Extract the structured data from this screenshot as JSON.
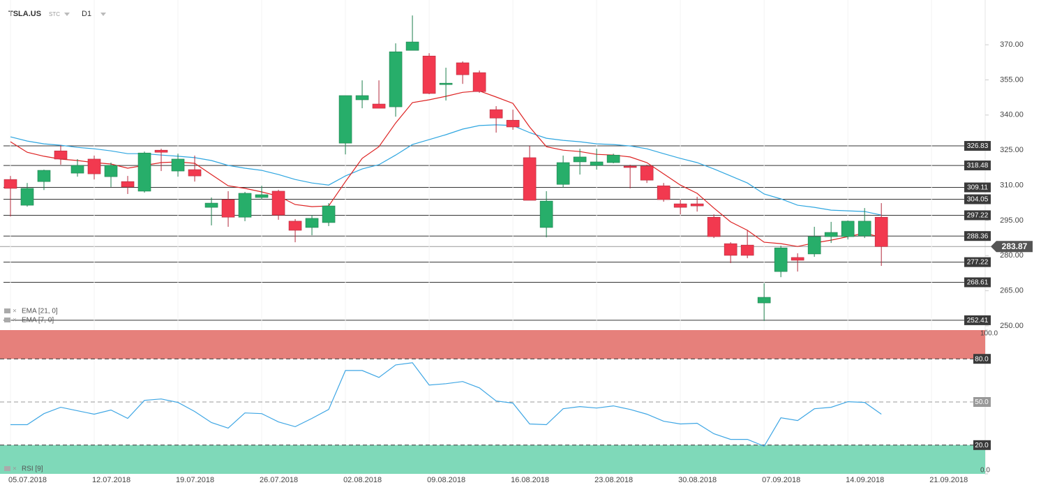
{
  "header": {
    "symbol": "TSLA.US",
    "kind": "STC",
    "interval": "D1"
  },
  "chart_data": [
    {
      "type": "candlestick",
      "xlim": [
        -0.625,
        58.2
      ],
      "xticks": [
        {
          "value": 0,
          "label": "05.07.2018"
        },
        {
          "value": 5,
          "label": "12.07.2018"
        },
        {
          "value": 10,
          "label": "19.07.2018"
        },
        {
          "value": 15,
          "label": "26.07.2018"
        },
        {
          "value": 20,
          "label": "02.08.2018"
        },
        {
          "value": 25,
          "label": "09.08.2018"
        },
        {
          "value": 30,
          "label": "16.08.2018"
        },
        {
          "value": 35,
          "label": "23.08.2018"
        },
        {
          "value": 40,
          "label": "30.08.2018"
        },
        {
          "value": 45,
          "label": "07.09.2018"
        },
        {
          "value": 50,
          "label": "14.09.2018"
        },
        {
          "value": 55,
          "label": "21.09.2018"
        }
      ],
      "ylim": [
        249.1,
        389.1
      ],
      "yticks": [
        {
          "value": 370,
          "label": "370.00"
        },
        {
          "value": 355,
          "label": "355.00"
        },
        {
          "value": 340,
          "label": "340.00"
        },
        {
          "value": 325,
          "label": "325.00"
        },
        {
          "value": 310,
          "label": "310.00"
        },
        {
          "value": 295,
          "label": "295.00"
        },
        {
          "value": 280,
          "label": "280.00"
        },
        {
          "value": 265,
          "label": "265.00"
        },
        {
          "value": 250,
          "label": "250.00"
        }
      ],
      "up_color": "#27ae6a",
      "down_color": "#f2394f",
      "open": [
        312.5,
        301.5,
        311.6,
        324.7,
        315.2,
        321.2,
        313.7,
        311.6,
        307.5,
        325.0,
        316.1,
        316.7,
        300.6,
        303.9,
        296.4,
        304.8,
        307.5,
        294.7,
        292.0,
        294.1,
        328.0,
        346.5,
        344.7,
        343.5,
        367.6,
        365.2,
        353.0,
        362.3,
        358.1,
        342.3,
        337.8,
        321.8,
        292.0,
        310.4,
        320.0,
        318.5,
        319.7,
        318.2,
        318.2,
        309.8,
        302.1,
        302.1,
        296.4,
        285.1,
        284.5,
        259.8,
        273.2,
        279.2,
        280.7,
        288.1,
        288.1,
        288.4,
        296.4
      ],
      "high": [
        314.0,
        311.0,
        316.7,
        327.1,
        321.2,
        322.7,
        319.7,
        314.0,
        324.4,
        325.6,
        323.5,
        322.7,
        304.8,
        307.5,
        307.2,
        309.8,
        308.1,
        295.6,
        297.3,
        302.4,
        348.3,
        354.8,
        354.8,
        370.6,
        382.5,
        366.4,
        360.2,
        362.9,
        359.0,
        343.8,
        342.3,
        326.8,
        307.5,
        322.7,
        325.6,
        325.6,
        323.5,
        318.8,
        318.8,
        311.0,
        303.9,
        305.1,
        297.6,
        285.7,
        290.8,
        268.2,
        284.2,
        281.0,
        292.3,
        294.4,
        295.0,
        300.3,
        302.4
      ],
      "low": [
        296.7,
        300.9,
        308.0,
        318.8,
        313.7,
        312.5,
        309.3,
        306.3,
        306.9,
        316.1,
        313.7,
        311.6,
        292.9,
        292.3,
        294.7,
        303.9,
        295.3,
        285.7,
        288.7,
        292.6,
        323.2,
        342.9,
        342.9,
        339.3,
        367.6,
        348.9,
        346.2,
        353.3,
        349.5,
        332.5,
        333.7,
        303.6,
        287.8,
        309.0,
        314.6,
        316.7,
        319.4,
        308.7,
        311.0,
        303.0,
        297.6,
        298.8,
        287.5,
        276.8,
        278.9,
        252.1,
        270.8,
        273.2,
        279.5,
        285.4,
        286.9,
        287.5,
        275.6
      ],
      "close": [
        308.7,
        308.7,
        316.4,
        321.2,
        318.5,
        314.9,
        318.5,
        309.3,
        323.8,
        324.1,
        321.2,
        314.0,
        302.4,
        296.4,
        306.6,
        306.0,
        297.3,
        290.8,
        295.9,
        301.2,
        348.3,
        348.3,
        342.9,
        367.0,
        371.2,
        349.2,
        353.6,
        357.2,
        350.0,
        338.7,
        334.9,
        303.6,
        303.3,
        319.7,
        322.1,
        320.0,
        322.9,
        317.6,
        312.2,
        303.9,
        300.6,
        301.2,
        288.1,
        280.1,
        280.1,
        262.2,
        283.3,
        278.0,
        288.1,
        289.9,
        294.7,
        294.7,
        283.87
      ],
      "series": [
        {
          "name": "EMA [21, 0]",
          "color": "#2fa6e0",
          "values": [
            330.7,
            328.9,
            327.7,
            327.1,
            326.2,
            325.6,
            324.7,
            323.5,
            323.5,
            322.9,
            322.4,
            321.8,
            320.6,
            318.5,
            317.3,
            316.4,
            314.6,
            312.5,
            311.0,
            310.1,
            314.0,
            317.0,
            318.8,
            322.9,
            327.4,
            329.5,
            331.6,
            334.0,
            335.5,
            335.8,
            335.5,
            332.5,
            330.1,
            329.2,
            328.6,
            327.7,
            327.4,
            326.8,
            325.6,
            323.5,
            321.5,
            319.7,
            317.0,
            314.0,
            311.0,
            306.3,
            304.2,
            301.5,
            300.6,
            299.4,
            299.1,
            298.8,
            297.3
          ]
        },
        {
          "name": "EMA [7, 0]",
          "color": "#dd2222",
          "values": [
            328.6,
            324.1,
            322.4,
            321.2,
            320.6,
            319.7,
            319.1,
            317.3,
            318.5,
            319.7,
            320.0,
            319.4,
            314.6,
            309.8,
            308.7,
            307.2,
            305.4,
            301.8,
            300.9,
            301.2,
            311.6,
            321.5,
            326.5,
            336.6,
            345.3,
            346.5,
            348.0,
            349.7,
            350.3,
            347.7,
            345.0,
            334.9,
            326.5,
            325.0,
            324.4,
            323.2,
            322.9,
            322.1,
            319.7,
            314.9,
            310.1,
            306.6,
            300.3,
            294.4,
            290.8,
            285.7,
            285.1,
            283.9,
            285.4,
            286.6,
            288.1,
            289.6,
            287.8
          ]
        }
      ],
      "levels": [
        326.83,
        318.48,
        309.11,
        304.05,
        297.22,
        288.36,
        277.22,
        268.61,
        252.41
      ],
      "last_price": 283.87
    },
    {
      "type": "line",
      "xlim": [
        -0.625,
        58.2
      ],
      "ylim": [
        0,
        100
      ],
      "yticks": [
        {
          "value": 100,
          "label": "100.0"
        },
        {
          "value": 80,
          "label": "80.0"
        },
        {
          "value": 50,
          "label": "50.0"
        },
        {
          "value": 20,
          "label": "20.0"
        },
        {
          "value": 0,
          "label": "0.0"
        }
      ],
      "bands": [
        {
          "from": 80,
          "to": 100,
          "color": "#e6807b"
        },
        {
          "from": 0,
          "to": 20,
          "color": "#7fd9b9"
        }
      ],
      "series": [
        {
          "name": "RSI [9]",
          "color": "#3ea6e4",
          "values": [
            34.2,
            34.2,
            41.9,
            46.3,
            43.9,
            41.5,
            44.4,
            38.6,
            51.1,
            52.1,
            49.7,
            43.4,
            35.7,
            31.8,
            42.4,
            41.9,
            36.1,
            32.8,
            38.6,
            44.8,
            71.9,
            71.9,
            67.1,
            75.8,
            77.3,
            61.8,
            62.7,
            64.2,
            59.8,
            50.7,
            49.2,
            34.7,
            34.2,
            45.3,
            46.8,
            45.8,
            47.3,
            44.8,
            41.5,
            36.6,
            34.7,
            35.2,
            27.9,
            24.0,
            24.0,
            19.2,
            39.0,
            37.1,
            45.3,
            46.3,
            50.2,
            49.7,
            41.5
          ]
        }
      ]
    }
  ]
}
